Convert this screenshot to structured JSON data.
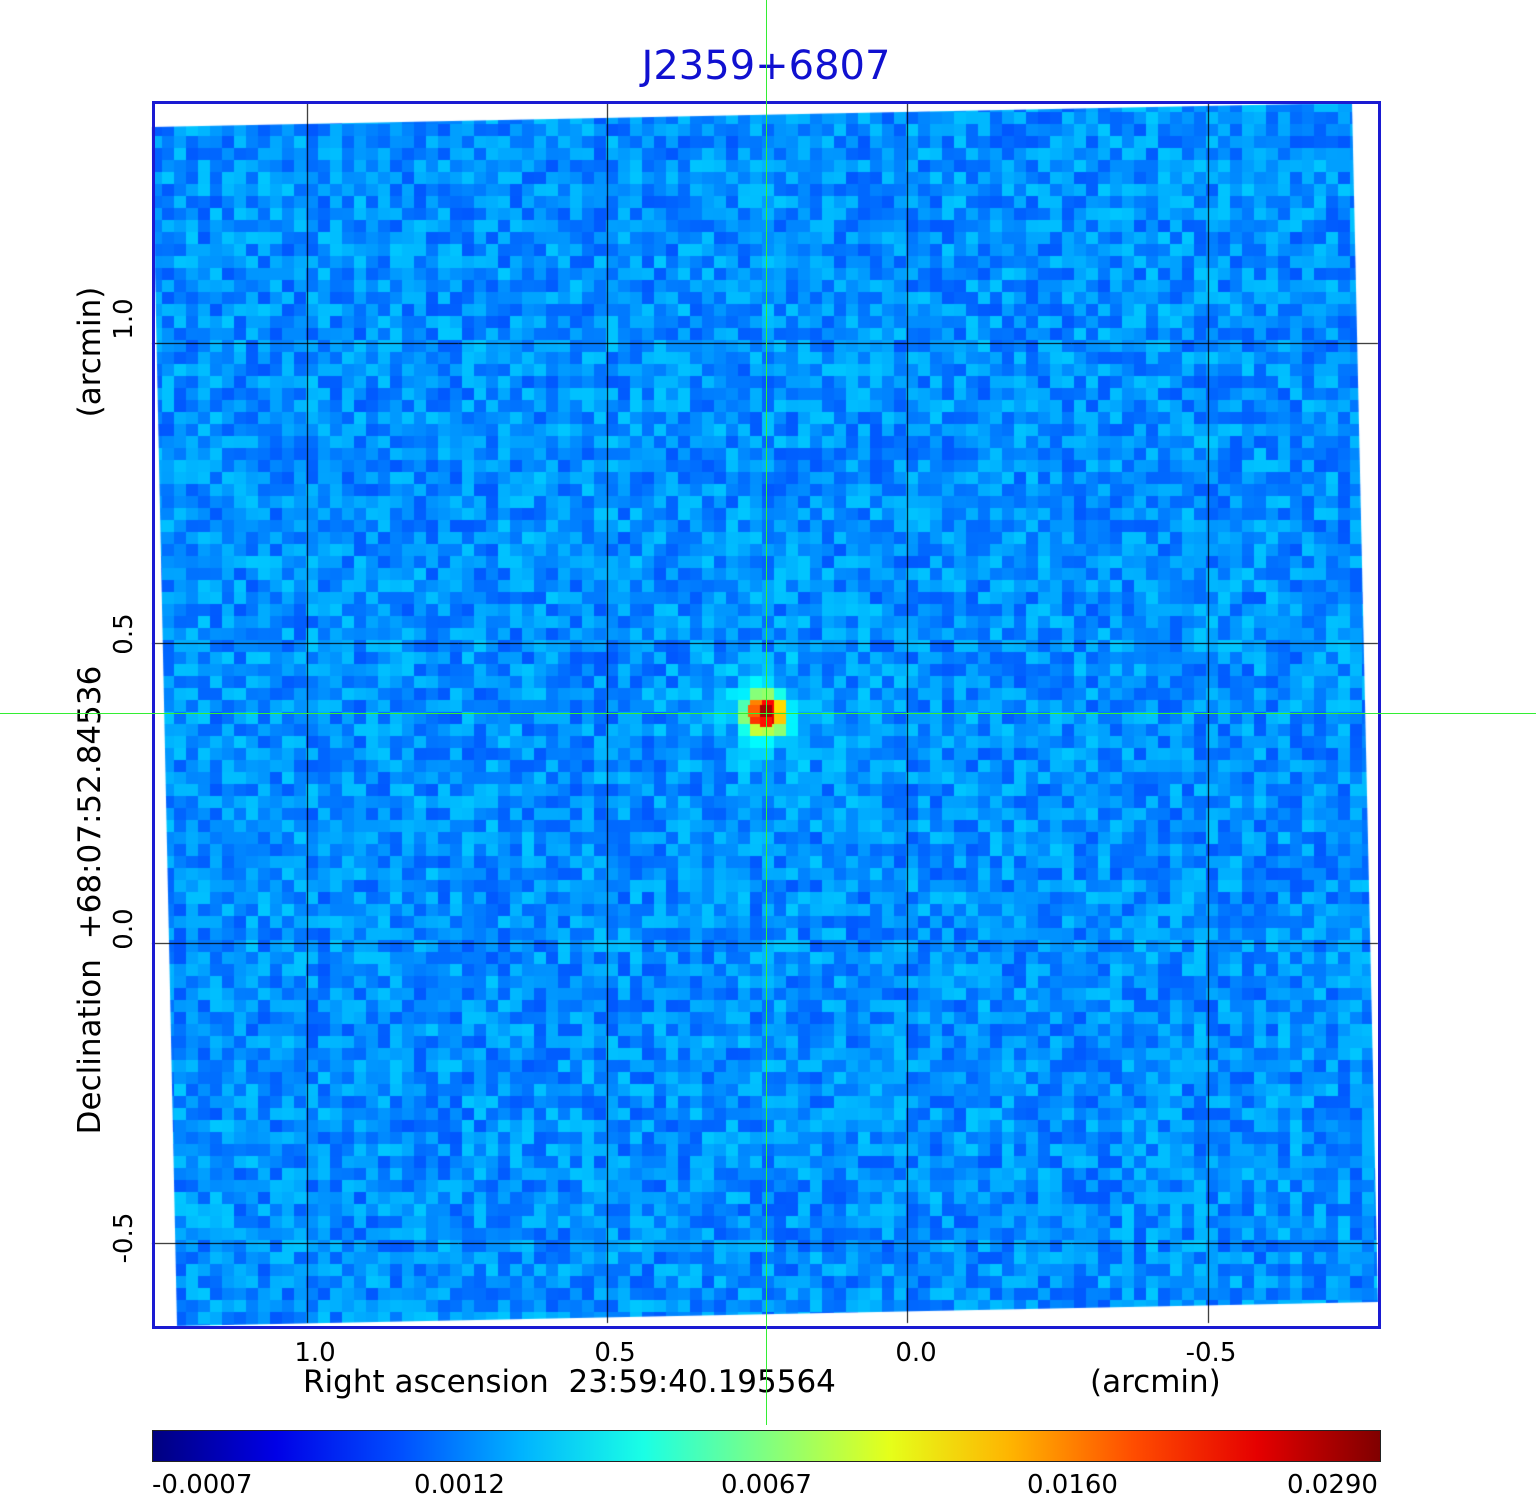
{
  "title": "J2359+6807",
  "x_axis": {
    "label": "Right ascension  23:59:40.195564",
    "unit": "(arcmin)",
    "ticks": [
      "1.0",
      "0.5",
      "0.0",
      "-0.5"
    ]
  },
  "y_axis": {
    "label": "Declination  +68:07:52.84536",
    "unit": "(arcmin)",
    "ticks": [
      "1.0",
      "0.5",
      "0.0",
      "-0.5"
    ]
  },
  "colorbar": {
    "colormap": "jet",
    "ticks": [
      "-0.0007",
      "0.0012",
      "0.0067",
      "0.0160",
      "0.0290"
    ]
  },
  "colors": {
    "frame": "#1a1ad2",
    "title": "#1010d0",
    "crosshair": "#33ee33",
    "grid": "#000000"
  }
}
